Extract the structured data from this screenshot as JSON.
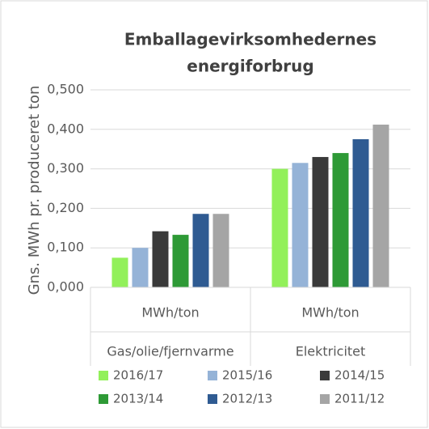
{
  "chart_data": {
    "type": "bar",
    "title": [
      "Emballagevirksomhedernes",
      "energiforbrug"
    ],
    "y_label": "Gns. MWh pr. produceret ton",
    "categories": [
      "MWh/ton",
      "MWh/ton"
    ],
    "groups": [
      "Gas/olie/fjernvarme",
      "Elektricitet"
    ],
    "series": [
      {
        "name": "2016/17",
        "color": "#92f05a",
        "values": [
          0.075,
          0.3
        ]
      },
      {
        "name": "2015/16",
        "color": "#95b3d7",
        "values": [
          0.1,
          0.315
        ]
      },
      {
        "name": "2014/15",
        "color": "#3a3a3a",
        "values": [
          0.142,
          0.33
        ]
      },
      {
        "name": "2013/14",
        "color": "#2e9a36",
        "values": [
          0.133,
          0.34
        ]
      },
      {
        "name": "2012/13",
        "color": "#2f5b92",
        "values": [
          0.186,
          0.375
        ]
      },
      {
        "name": "2011/12",
        "color": "#a5a5a5",
        "values": [
          0.186,
          0.412
        ]
      }
    ],
    "ylim": [
      0,
      0.5
    ],
    "yticks": [
      {
        "value": 0,
        "label": "0,000"
      },
      {
        "value": 0.1,
        "label": "0,100"
      },
      {
        "value": 0.2,
        "label": "0,200"
      },
      {
        "value": 0.3,
        "label": "0,300"
      },
      {
        "value": 0.4,
        "label": "0,400"
      },
      {
        "value": 0.5,
        "label": "0,500"
      }
    ],
    "grid": true
  }
}
